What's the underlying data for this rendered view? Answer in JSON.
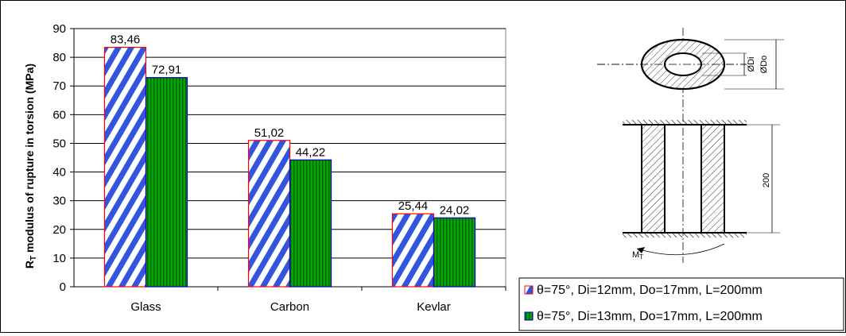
{
  "chart_data": {
    "type": "bar",
    "categories": [
      "Glass",
      "Carbon",
      "Kevlar"
    ],
    "series": [
      {
        "name": "θ=75°, Di=12mm, Do=17mm, L=200mm",
        "values": [
          83.46,
          51.02,
          25.44
        ],
        "labels": [
          "83,46",
          "51,02",
          "25,44"
        ],
        "fill": "hatch-blue",
        "color": "#3355dd",
        "border": "#ff0000"
      },
      {
        "name": "θ=75°, Di=13mm, Do=17mm, L=200mm",
        "values": [
          72.91,
          44.22,
          24.02
        ],
        "labels": [
          "72,91",
          "44,22",
          "24,02"
        ],
        "fill": "stripe-green",
        "color": "#00a800",
        "border": "#0000cc"
      }
    ],
    "ylabel_main": "R",
    "ylabel_sub": "T",
    "ylabel_rest": " modulus of rupture in torsion (MPa)",
    "ylim": [
      0,
      90
    ],
    "yticks": [
      0,
      10,
      20,
      30,
      40,
      50,
      60,
      70,
      80,
      90
    ],
    "grid": true,
    "plot_background": "#ffffff",
    "legend_position": "bottom-right"
  },
  "diagram": {
    "dim_inner": "ØDi",
    "dim_outer": "ØDo",
    "length_label": "200",
    "torque_label": "M",
    "torque_sub": "T"
  }
}
